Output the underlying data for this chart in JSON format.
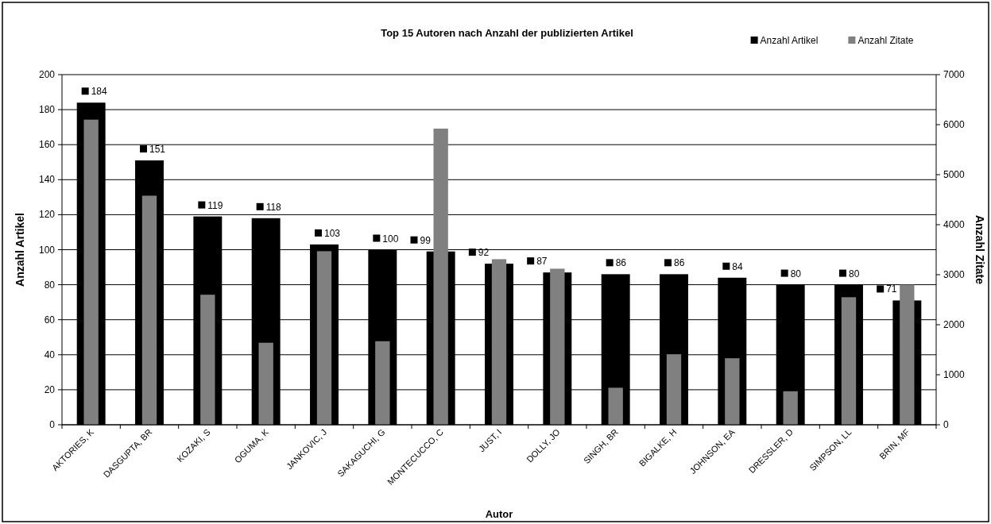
{
  "chart_data": {
    "type": "bar",
    "title": "Top 15 Autoren nach Anzahl der publizierten Artikel",
    "xlabel": "Autor",
    "ylabel": "Anzahl Artikel",
    "y2label": "Anzahl Zitate",
    "categories": [
      "AKTORIES, K",
      "DASGUPTA, BR",
      "KOZAKI, S",
      "OGUMA, K",
      "JANKOVIC, J",
      "SAKAGUCHI, G",
      "MONTECUCCO, C",
      "JUST, I",
      "DOLLY, JO",
      "SINGH, BR",
      "BIGALKE, H",
      "JOHNSON, EA",
      "DRESSLER, D",
      "SIMPSON, LL",
      "BRIN, MF"
    ],
    "series": [
      {
        "name": "Anzahl Artikel",
        "color": "#000000",
        "values": [
          184,
          151,
          119,
          118,
          103,
          100,
          99,
          92,
          87,
          86,
          86,
          84,
          80,
          80,
          71
        ],
        "value_labels": [
          "184",
          "151",
          "119",
          "118",
          "103",
          "100",
          "99",
          "92",
          "87",
          "86",
          "86",
          "84",
          "80",
          "80",
          "71"
        ]
      },
      {
        "name": "Anzahl Zitate",
        "color": "#808080",
        "axis": "y2",
        "values": [
          6100,
          4580,
          2600,
          1640,
          3470,
          1670,
          5920,
          3310,
          3120,
          740,
          1410,
          1330,
          670,
          2550,
          2800
        ]
      }
    ],
    "ylim": [
      0,
      200
    ],
    "yticks": [
      0,
      20,
      40,
      60,
      80,
      100,
      120,
      140,
      160,
      180,
      200
    ],
    "y2lim": [
      0,
      7000
    ],
    "y2ticks": [
      0,
      1000,
      2000,
      3000,
      4000,
      5000,
      6000,
      7000
    ],
    "grid": "y",
    "legend": "top right"
  }
}
